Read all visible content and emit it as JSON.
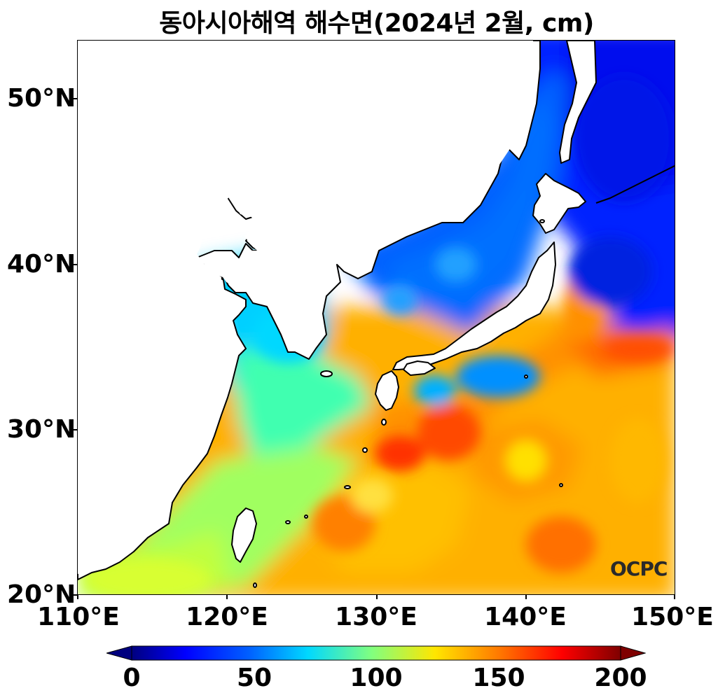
{
  "title": "동아시아해역 해수면(2024년 2월, cm)",
  "axes": {
    "lat_ticks": [
      "50°N",
      "40°N",
      "30°N",
      "20°N"
    ],
    "lon_ticks": [
      "110°E",
      "120°E",
      "130°E",
      "140°E",
      "150°E"
    ],
    "lat_range": [
      20,
      53.5
    ],
    "lon_range": [
      110,
      150
    ]
  },
  "colorbar": {
    "ticks": [
      "0",
      "50",
      "100",
      "150",
      "200"
    ],
    "range": [
      0,
      200
    ],
    "colormap": "jet",
    "extend": "both"
  },
  "logo": "OCPC",
  "colors": {
    "land": "#ffffff",
    "coast": "#000000"
  }
}
